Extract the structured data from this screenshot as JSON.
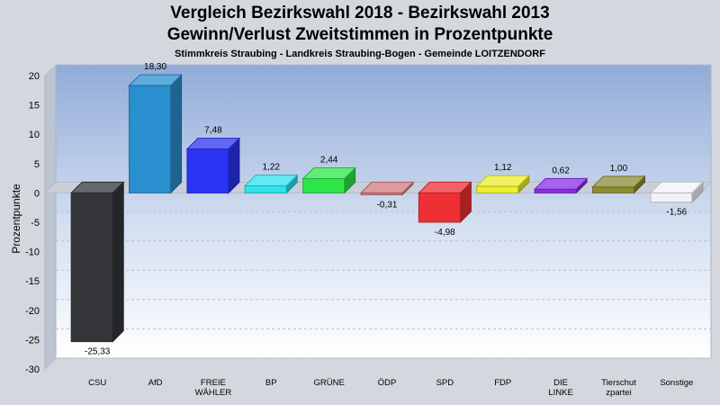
{
  "chart_data": {
    "type": "bar",
    "title": "Vergleich Bezirkswahl 2018 - Bezirkswahl 2013",
    "subtitle": "Gewinn/Verlust Zweitstimmen in Prozentpunkte",
    "subsubtitle": "Stimmkreis Straubing - Landkreis Straubing-Bogen - Gemeinde LOITZENDORF",
    "ylabel": "Prozentpunkte",
    "xlabel": "",
    "ylim": [
      -30,
      20
    ],
    "yticks": [
      20,
      15,
      10,
      5,
      0,
      -5,
      -10,
      -15,
      -20,
      -25,
      -30
    ],
    "grid": true,
    "categories": [
      {
        "label": [
          "CSU"
        ],
        "value": -25.33,
        "value_label": "-25,33",
        "color": "#34363a"
      },
      {
        "label": [
          "AfD"
        ],
        "value": 18.3,
        "value_label": "18,30",
        "color": "#2a8fcf"
      },
      {
        "label": [
          "FREIE",
          "WÄHLER"
        ],
        "value": 7.48,
        "value_label": "7,48",
        "color": "#2b34f2"
      },
      {
        "label": [
          "BP"
        ],
        "value": 1.22,
        "value_label": "1,22",
        "color": "#2ee2ee"
      },
      {
        "label": [
          "GRÜNE"
        ],
        "value": 2.44,
        "value_label": "2,44",
        "color": "#2ee64a"
      },
      {
        "label": [
          "ÖDP"
        ],
        "value": -0.31,
        "value_label": "-0,31",
        "color": "#d27a7e"
      },
      {
        "label": [
          "SPD"
        ],
        "value": -4.98,
        "value_label": "-4,98",
        "color": "#ee2f34"
      },
      {
        "label": [
          "FDP"
        ],
        "value": 1.12,
        "value_label": "1,12",
        "color": "#eeee2c"
      },
      {
        "label": [
          "DIE",
          "LINKE"
        ],
        "value": 0.62,
        "value_label": "0,62",
        "color": "#8a2ee6"
      },
      {
        "label": [
          "Tierschut",
          "zpartei"
        ],
        "value": 1.0,
        "value_label": "1,00",
        "color": "#8c8c32"
      },
      {
        "label": [
          "Sonstige"
        ],
        "value": -1.56,
        "value_label": "-1,56",
        "color": "#f2f2f8"
      }
    ]
  }
}
